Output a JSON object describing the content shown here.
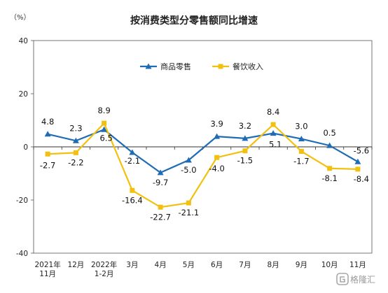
{
  "chart_data": {
    "type": "line",
    "title": "按消费类型分零售额同比增速",
    "ylabel": "（%）",
    "ylim": [
      -40,
      40
    ],
    "yticks": [
      40,
      20,
      0,
      -20,
      -40
    ],
    "categories": [
      "2021年\n11月",
      "12月",
      "2022年\n1-2月",
      "3月",
      "4月",
      "5月",
      "6月",
      "7月",
      "8月",
      "9月",
      "10月",
      "11月"
    ],
    "series": [
      {
        "name": "商品零售",
        "color": "#1f6cb5",
        "marker": "triangle",
        "values": [
          4.8,
          2.3,
          6.5,
          -2.1,
          -9.7,
          -5.0,
          3.9,
          3.2,
          5.1,
          3.0,
          0.5,
          -5.6
        ],
        "labels": [
          "4.8",
          "2.3",
          "6.5",
          "-2.1",
          "-9.7",
          "-5.0",
          "3.9",
          "3.2",
          "5.1",
          "3.0",
          "0.5",
          "-5.6"
        ]
      },
      {
        "name": "餐饮收入",
        "color": "#f2c00f",
        "marker": "square",
        "values": [
          -2.7,
          -2.2,
          8.9,
          -16.4,
          -22.7,
          -21.1,
          -4.0,
          -1.5,
          8.4,
          -1.7,
          -8.1,
          -8.4
        ],
        "labels": [
          "-2.7",
          "-2.2",
          "8.9",
          "-16.4",
          "-22.7",
          "-21.1",
          "-4.0",
          "-1.5",
          "8.4",
          "-1.7",
          "-8.1",
          "-8.4"
        ]
      }
    ],
    "legend_position": "top-center",
    "grid": false
  },
  "watermark": {
    "text": "格隆汇",
    "icon": "gelonghui-logo-icon"
  }
}
